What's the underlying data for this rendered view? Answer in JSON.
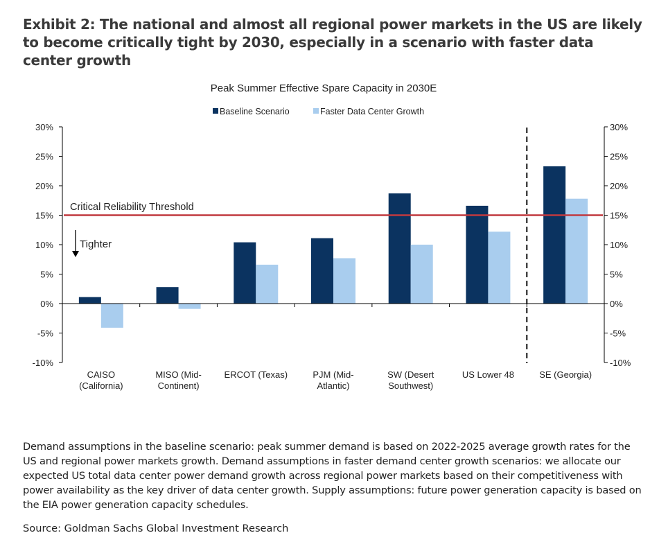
{
  "title": "Exhibit 2: The national and almost all regional power markets in the US are likely to become critically tight by 2030, especially in a scenario with faster data center growth",
  "footnote": "Demand assumptions in the baseline scenario: peak summer demand is based on 2022-2025 average growth rates for the US and regional power markets growth. Demand assumptions in faster demand center growth scenarios: we allocate our expected US total data center power demand growth across regional power markets based on their competitiveness with power availability as the key driver of data center growth. Supply assumptions: future power generation capacity is based on the EIA power generation capacity schedules.",
  "source": "Source: Goldman Sachs Global Investment Research",
  "chart_data": {
    "type": "bar",
    "title": "Peak Summer Effective Spare Capacity in 2030E",
    "categories": [
      [
        "CAISO",
        "(California)"
      ],
      [
        "MISO (Mid-",
        "Continent)"
      ],
      [
        "ERCOT (Texas)"
      ],
      [
        "PJM (Mid-",
        "Atlantic)"
      ],
      [
        "SW (Desert",
        "Southwest)"
      ],
      [
        "US Lower 48"
      ],
      [
        "SE (Georgia)"
      ]
    ],
    "series": [
      {
        "name": "Baseline Scenario",
        "color": "#0b3360",
        "values": [
          1.1,
          2.8,
          10.4,
          11.1,
          18.7,
          16.6,
          23.3
        ]
      },
      {
        "name": "Faster Data Center Growth",
        "color": "#a9cdee",
        "values": [
          -4.1,
          -0.9,
          6.6,
          7.7,
          10.0,
          12.2,
          17.8
        ]
      }
    ],
    "ylim": [
      -10,
      30
    ],
    "yticks": [
      "-10%",
      "-5%",
      "0%",
      "5%",
      "10%",
      "15%",
      "20%",
      "25%",
      "30%"
    ],
    "ytick_values": [
      -10,
      -5,
      0,
      5,
      10,
      15,
      20,
      25,
      30
    ],
    "secondary_y_axis": true,
    "legend": "top",
    "threshold": {
      "value": 15,
      "label": "Critical Reliability Threshold",
      "color": "#c0393f"
    },
    "annotation": "Tighter",
    "separator_before_category": "SE (Georgia)"
  }
}
